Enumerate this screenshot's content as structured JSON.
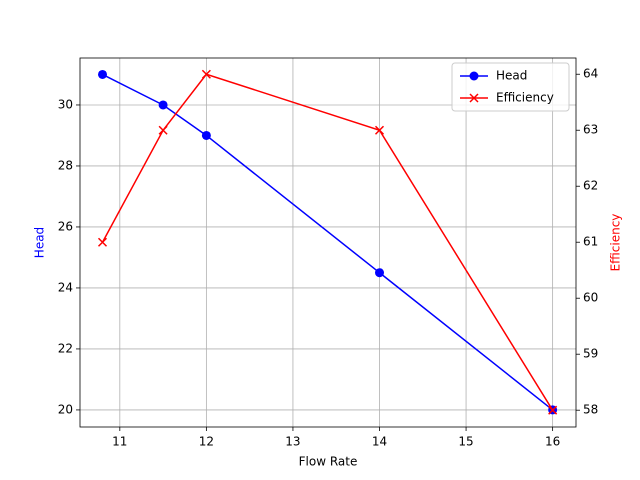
{
  "chart_data": {
    "type": "line",
    "x_label": "Flow Rate",
    "y_label": "Head",
    "y2_label": "Efficiency",
    "x": [
      10.8,
      11.5,
      12,
      14,
      16
    ],
    "series": [
      {
        "name": "Head",
        "color": "#0000ff",
        "marker": "o",
        "values": [
          31,
          30,
          29,
          24.5,
          20
        ]
      },
      {
        "name": "Efficiency",
        "color": "#ff0000",
        "marker": "x",
        "axis": "y2",
        "values": [
          61,
          63,
          64,
          63,
          58
        ]
      }
    ],
    "xlim": [
      10.54,
      16.27
    ],
    "xticks": [
      11,
      12,
      13,
      14,
      15,
      16
    ],
    "ylim": [
      19.44,
      31.54
    ],
    "yticks": [
      20,
      22,
      24,
      26,
      28,
      30
    ],
    "y2lim": [
      57.7,
      64.29
    ],
    "y2ticks": [
      58,
      59,
      60,
      61,
      62,
      63,
      64
    ],
    "grid": true,
    "legend": "upper right"
  }
}
